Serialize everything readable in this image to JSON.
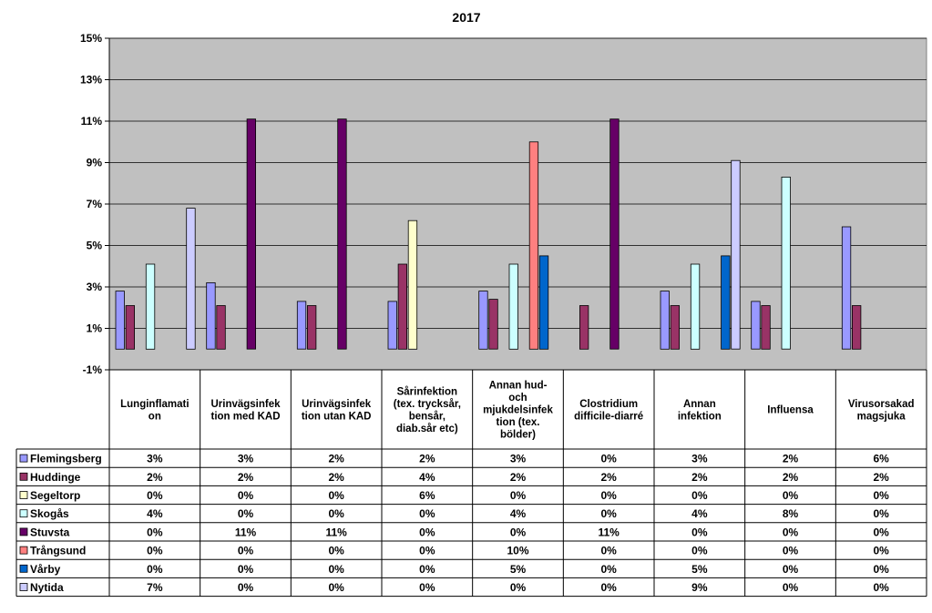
{
  "chart_data": {
    "type": "bar",
    "title": "2017",
    "xlabel": "",
    "ylabel": "",
    "ylim": [
      -1,
      15
    ],
    "yticks": [
      "-1%",
      "1%",
      "3%",
      "5%",
      "7%",
      "9%",
      "11%",
      "13%",
      "15%"
    ],
    "grid": true,
    "legend_placement": "left of data table",
    "plot_background": "#c0c0c0",
    "categories": [
      "Lunginflamation",
      "Urinvägsinfektion med KAD",
      "Urinvägsinfektion utan KAD",
      "Sårinfektion (tex. trycksår, bensår, diab.sår etc)",
      "Annan hud- och mjukdelsinfektion (tex. bölder)",
      "Clostridium difficile-diarré",
      "Annan infektion",
      "Influensa",
      "Virusorsakad magsjuka"
    ],
    "category_label_lines": [
      [
        "Lunginflamati",
        "on"
      ],
      [
        "Urinvägsinfek",
        "tion med KAD"
      ],
      [
        "Urinvägsinfek",
        "tion utan KAD"
      ],
      [
        "Sårinfektion",
        "(tex. trycksår,",
        "bensår,",
        "diab.sår etc)"
      ],
      [
        "Annan hud-",
        "och",
        "mjukdelsinfek",
        "tion (tex.",
        "bölder)"
      ],
      [
        "Clostridium",
        "difficile-diarré"
      ],
      [
        "Annan",
        "infektion"
      ],
      [
        "Influensa"
      ],
      [
        "Virusorsakad",
        "magsjuka"
      ]
    ],
    "series": [
      {
        "name": "Flemingsberg",
        "color": "#9999ff",
        "values": [
          2.8,
          3.2,
          2.3,
          2.3,
          2.8,
          0,
          2.8,
          2.3,
          5.9
        ],
        "labels": [
          "3%",
          "3%",
          "2%",
          "2%",
          "3%",
          "0%",
          "3%",
          "2%",
          "6%"
        ]
      },
      {
        "name": "Huddinge",
        "color": "#993366",
        "values": [
          2.1,
          2.1,
          2.1,
          4.1,
          2.4,
          2.1,
          2.1,
          2.1,
          2.1
        ],
        "labels": [
          "2%",
          "2%",
          "2%",
          "4%",
          "2%",
          "2%",
          "2%",
          "2%",
          "2%"
        ]
      },
      {
        "name": "Segeltorp",
        "color": "#ffffcc",
        "values": [
          0,
          0,
          0,
          6.2,
          0,
          0,
          0,
          0,
          0
        ],
        "labels": [
          "0%",
          "0%",
          "0%",
          "6%",
          "0%",
          "0%",
          "0%",
          "0%",
          "0%"
        ]
      },
      {
        "name": "Skogås",
        "color": "#ccffff",
        "values": [
          4.1,
          0,
          0,
          0,
          4.1,
          0,
          4.1,
          8.3,
          0
        ],
        "labels": [
          "4%",
          "0%",
          "0%",
          "0%",
          "4%",
          "0%",
          "4%",
          "8%",
          "0%"
        ]
      },
      {
        "name": "Stuvsta",
        "color": "#660066",
        "values": [
          0,
          11.1,
          11.1,
          0,
          0,
          11.1,
          0,
          0,
          0
        ],
        "labels": [
          "0%",
          "11%",
          "11%",
          "0%",
          "0%",
          "11%",
          "0%",
          "0%",
          "0%"
        ]
      },
      {
        "name": "Trångsund",
        "color": "#ff8080",
        "values": [
          0,
          0,
          0,
          0,
          10,
          0,
          0,
          0,
          0
        ],
        "labels": [
          "0%",
          "0%",
          "0%",
          "0%",
          "10%",
          "0%",
          "0%",
          "0%",
          "0%"
        ]
      },
      {
        "name": "Vårby",
        "color": "#0066cc",
        "values": [
          0,
          0,
          0,
          0,
          4.5,
          0,
          4.5,
          0,
          0
        ],
        "labels": [
          "0%",
          "0%",
          "0%",
          "0%",
          "5%",
          "0%",
          "5%",
          "0%",
          "0%"
        ]
      },
      {
        "name": "Nytida",
        "color": "#ccccff",
        "values": [
          6.8,
          0,
          0,
          0,
          0,
          0,
          9.1,
          0,
          0
        ],
        "labels": [
          "7%",
          "0%",
          "0%",
          "0%",
          "0%",
          "0%",
          "9%",
          "0%",
          "0%"
        ]
      }
    ]
  }
}
